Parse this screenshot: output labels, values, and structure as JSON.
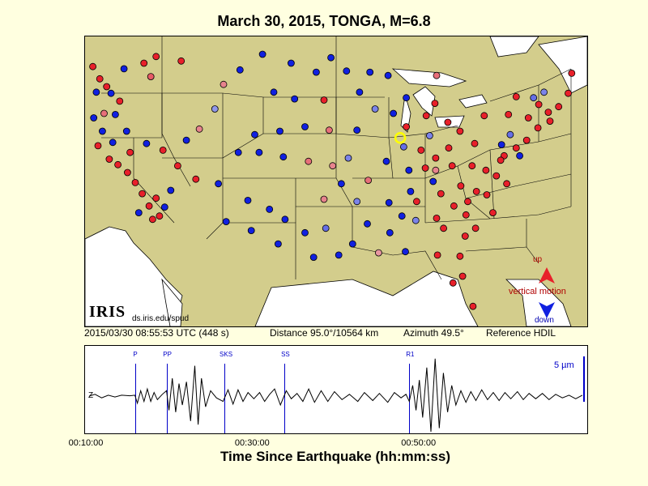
{
  "title": "March 30, 2015, TONGA, M=6.8",
  "info": {
    "datetime": "2015/03/30 08:55:53 UTC (448 s)",
    "distance": "Distance  95.0°/10564 km",
    "azimuth": "Azimuth  49.5°",
    "reference": "Reference HDIL"
  },
  "legend": {
    "up": "up",
    "vertical": "vertical motion",
    "down": "down"
  },
  "branding": {
    "logo": "IRIS",
    "url": "ds.iris.edu/spud"
  },
  "colors": {
    "background": "#ffffe0",
    "land": "#d3cd8c",
    "water": "#ffffff",
    "up": "#e8202a",
    "down": "#1020e0",
    "phase": "#0000c8"
  },
  "chart_data": {
    "type": "line",
    "xlabel": "Time Since Earthquake (hh:mm:ss)",
    "x_ticks": [
      "00:10:00",
      "00:30:00",
      "00:50:00"
    ],
    "x_tick_values_min": [
      10,
      30,
      50
    ],
    "xlim_min": [
      10,
      70
    ],
    "scale_label": "5 µm",
    "phases": [
      {
        "name": "P",
        "t": 15.8
      },
      {
        "name": "PP",
        "t": 19.6
      },
      {
        "name": "SKS",
        "t": 26.6
      },
      {
        "name": "SS",
        "t": 33.8
      },
      {
        "name": "R1",
        "t": 48.8
      }
    ],
    "trace_marker": "Z",
    "waveform": [
      [
        10.3,
        0
      ],
      [
        11.0,
        0.1
      ],
      [
        11.8,
        -0.1
      ],
      [
        12.6,
        0.05
      ],
      [
        13.4,
        -0.05
      ],
      [
        14.2,
        0.05
      ],
      [
        15.2,
        0.02
      ],
      [
        15.8,
        0.05
      ],
      [
        16.1,
        -0.4
      ],
      [
        16.5,
        0.3
      ],
      [
        16.9,
        -0.3
      ],
      [
        17.3,
        0.4
      ],
      [
        17.7,
        -0.3
      ],
      [
        18.1,
        0.2
      ],
      [
        18.5,
        -0.2
      ],
      [
        19.1,
        0.1
      ],
      [
        19.6,
        0.3
      ],
      [
        19.9,
        -0.8
      ],
      [
        20.3,
        1.0
      ],
      [
        20.7,
        -0.9
      ],
      [
        21.1,
        0.7
      ],
      [
        21.5,
        -0.5
      ],
      [
        22.0,
        0.8
      ],
      [
        22.5,
        -1.4
      ],
      [
        23.0,
        1.7
      ],
      [
        23.4,
        -1.6
      ],
      [
        23.8,
        1.0
      ],
      [
        24.3,
        -0.6
      ],
      [
        24.9,
        0.3
      ],
      [
        25.6,
        -0.1
      ],
      [
        26.4,
        -0.3
      ],
      [
        27.0,
        0.35
      ],
      [
        27.6,
        -0.45
      ],
      [
        28.2,
        0.35
      ],
      [
        28.8,
        -0.3
      ],
      [
        29.4,
        0.2
      ],
      [
        30.1,
        -0.15
      ],
      [
        30.8,
        0.2
      ],
      [
        31.4,
        -0.3
      ],
      [
        32.0,
        0.1
      ],
      [
        32.6,
        0.4
      ],
      [
        33.3,
        -0.5
      ],
      [
        34.0,
        0.3
      ],
      [
        34.6,
        -0.15
      ],
      [
        35.3,
        0.15
      ],
      [
        36.0,
        -0.3
      ],
      [
        36.7,
        0.4
      ],
      [
        37.4,
        -0.35
      ],
      [
        38.2,
        0.3
      ],
      [
        39.0,
        -0.3
      ],
      [
        39.8,
        0.25
      ],
      [
        40.7,
        -0.2
      ],
      [
        41.6,
        0.1
      ],
      [
        42.6,
        -0.3
      ],
      [
        43.4,
        0.2
      ],
      [
        44.4,
        -0.25
      ],
      [
        45.2,
        0.15
      ],
      [
        46.2,
        -0.35
      ],
      [
        47.0,
        0.2
      ],
      [
        47.8,
        -0.1
      ],
      [
        48.4,
        0.1
      ],
      [
        48.8,
        -0.3
      ],
      [
        49.2,
        0.6
      ],
      [
        49.6,
        -0.8
      ],
      [
        50.0,
        0.9
      ],
      [
        50.4,
        -1.2
      ],
      [
        50.9,
        1.6
      ],
      [
        51.4,
        -2.0
      ],
      [
        51.9,
        2.1
      ],
      [
        52.4,
        -1.8
      ],
      [
        52.9,
        1.3
      ],
      [
        53.4,
        -0.9
      ],
      [
        53.9,
        0.6
      ],
      [
        54.4,
        -0.5
      ],
      [
        55.0,
        0.3
      ],
      [
        55.6,
        -0.35
      ],
      [
        56.2,
        0.25
      ],
      [
        56.8,
        -0.25
      ],
      [
        57.5,
        0.35
      ],
      [
        58.2,
        -0.2
      ],
      [
        58.9,
        0.2
      ],
      [
        59.6,
        -0.25
      ],
      [
        60.3,
        0.2
      ],
      [
        61.0,
        -0.15
      ],
      [
        61.8,
        0.25
      ],
      [
        62.5,
        -0.2
      ],
      [
        63.2,
        0.15
      ],
      [
        64.0,
        -0.15
      ],
      [
        64.8,
        0.15
      ],
      [
        65.6,
        -0.2
      ],
      [
        66.4,
        0.1
      ],
      [
        67.2,
        -0.1
      ],
      [
        68.0,
        0.05
      ],
      [
        68.8,
        -0.15
      ],
      [
        69.6,
        0.05
      ]
    ],
    "station_values": [
      [
        -124.1,
        47.3,
        1
      ],
      [
        -123.3,
        46.2,
        1
      ],
      [
        -122.5,
        45.5,
        1
      ],
      [
        -121.0,
        44.2,
        1
      ],
      [
        -122.8,
        43.1,
        0.6
      ],
      [
        -118.2,
        47.6,
        1
      ],
      [
        -116.8,
        48.2,
        1
      ],
      [
        -113.9,
        47.8,
        1
      ],
      [
        -117.4,
        46.4,
        0.7
      ],
      [
        -120.5,
        47.1,
        -1
      ],
      [
        -123.7,
        45.0,
        -1
      ],
      [
        -122.0,
        44.9,
        -1
      ],
      [
        -124.0,
        42.7,
        -1
      ],
      [
        -121.5,
        43.0,
        -1
      ],
      [
        -123.0,
        41.5,
        -1
      ],
      [
        -121.8,
        40.5,
        -1
      ],
      [
        -120.2,
        41.5,
        -1
      ],
      [
        -123.5,
        40.2,
        1
      ],
      [
        -122.2,
        39.0,
        1
      ],
      [
        -121.2,
        38.5,
        1
      ],
      [
        -120.1,
        37.8,
        1
      ],
      [
        -119.2,
        36.9,
        1
      ],
      [
        -118.4,
        35.9,
        1
      ],
      [
        -117.6,
        34.8,
        1
      ],
      [
        -118.8,
        34.2,
        -1
      ],
      [
        -117.2,
        33.6,
        1
      ],
      [
        -116.4,
        33.9,
        1
      ],
      [
        -115.8,
        34.7,
        -1
      ],
      [
        -116.8,
        35.5,
        1
      ],
      [
        -115.1,
        36.2,
        -1
      ],
      [
        -119.8,
        39.6,
        1
      ],
      [
        -117.9,
        40.4,
        -1
      ],
      [
        -116.0,
        39.8,
        1
      ],
      [
        -114.3,
        38.4,
        1
      ],
      [
        -112.2,
        37.2,
        1
      ],
      [
        -113.3,
        40.7,
        -1
      ],
      [
        -111.8,
        41.7,
        0.5
      ],
      [
        -110.0,
        43.5,
        -0.4
      ],
      [
        -109.0,
        45.7,
        0.5
      ],
      [
        -107.1,
        47.0,
        -1
      ],
      [
        -104.5,
        48.4,
        -1
      ],
      [
        -101.2,
        47.6,
        -1
      ],
      [
        -98.3,
        46.8,
        -1
      ],
      [
        -96.6,
        48.1,
        -1
      ],
      [
        -103.2,
        45.0,
        -1
      ],
      [
        -100.8,
        44.4,
        -1
      ],
      [
        -97.4,
        44.3,
        1
      ],
      [
        -105.4,
        41.2,
        -1
      ],
      [
        -102.5,
        41.5,
        -1
      ],
      [
        -99.6,
        41.9,
        -1
      ],
      [
        -96.8,
        41.6,
        0.6
      ],
      [
        -107.3,
        39.6,
        -1
      ],
      [
        -104.9,
        39.6,
        -1
      ],
      [
        -102.1,
        39.2,
        -1
      ],
      [
        -99.2,
        38.8,
        0.6
      ],
      [
        -96.4,
        38.4,
        0.5
      ],
      [
        -109.6,
        36.8,
        -1
      ],
      [
        -106.2,
        35.3,
        -1
      ],
      [
        -103.7,
        34.5,
        -1
      ],
      [
        -108.7,
        33.4,
        -1
      ],
      [
        -105.8,
        32.6,
        -1
      ],
      [
        -101.9,
        33.6,
        -1
      ],
      [
        -99.6,
        32.4,
        -1
      ],
      [
        -102.7,
        31.4,
        -1
      ],
      [
        -98.6,
        30.2,
        -1
      ],
      [
        -97.2,
        32.8,
        -0.6
      ],
      [
        -95.7,
        30.4,
        -1
      ],
      [
        -97.4,
        35.4,
        0.5
      ],
      [
        -95.4,
        36.8,
        -1
      ],
      [
        -93.6,
        35.2,
        -0.5
      ],
      [
        -92.4,
        33.2,
        -1
      ],
      [
        -94.1,
        31.4,
        -1
      ],
      [
        -91.1,
        30.6,
        0.4
      ],
      [
        -89.8,
        32.4,
        -1
      ],
      [
        -88.4,
        33.9,
        -1
      ],
      [
        -86.7,
        35.2,
        1
      ],
      [
        -90.2,
        38.8,
        -1
      ],
      [
        -92.3,
        37.1,
        0.6
      ],
      [
        -94.6,
        39.1,
        -0.5
      ],
      [
        -93.6,
        41.6,
        -1
      ],
      [
        -91.5,
        43.5,
        -0.5
      ],
      [
        -89.4,
        43.1,
        -1
      ],
      [
        -87.9,
        41.9,
        1
      ],
      [
        -86.2,
        39.8,
        1
      ],
      [
        -84.5,
        39.1,
        1
      ],
      [
        -83.0,
        40.0,
        1
      ],
      [
        -81.7,
        41.5,
        1
      ],
      [
        -83.1,
        42.3,
        1
      ],
      [
        -84.6,
        44.0,
        1
      ],
      [
        -85.6,
        42.9,
        1
      ],
      [
        -87.9,
        44.5,
        -1
      ],
      [
        -90.0,
        46.5,
        -1
      ],
      [
        -93.3,
        45.0,
        -1
      ],
      [
        -94.8,
        46.9,
        -1
      ],
      [
        -92.1,
        46.8,
        -1
      ],
      [
        -84.4,
        46.5,
        0.6
      ],
      [
        -80.0,
        40.4,
        1
      ],
      [
        -78.9,
        42.9,
        1
      ],
      [
        -76.1,
        43.0,
        1
      ],
      [
        -75.2,
        44.6,
        1
      ],
      [
        -73.8,
        42.7,
        1
      ],
      [
        -72.6,
        43.9,
        1
      ],
      [
        -71.5,
        43.2,
        1
      ],
      [
        -70.3,
        43.7,
        1
      ],
      [
        -69.2,
        44.9,
        1
      ],
      [
        -68.8,
        46.7,
        1
      ],
      [
        -71.3,
        42.4,
        1
      ],
      [
        -72.7,
        41.8,
        1
      ],
      [
        -74.0,
        40.7,
        1
      ],
      [
        -75.2,
        40.0,
        1
      ],
      [
        -76.6,
        39.3,
        1
      ],
      [
        -77.0,
        38.9,
        1
      ],
      [
        -77.5,
        37.5,
        1
      ],
      [
        -78.7,
        38.0,
        1
      ],
      [
        -80.3,
        38.4,
        1
      ],
      [
        -79.8,
        36.1,
        1
      ],
      [
        -78.6,
        35.8,
        1
      ],
      [
        -77.9,
        34.2,
        1
      ],
      [
        -76.3,
        36.8,
        1
      ],
      [
        -80.8,
        35.2,
        1
      ],
      [
        -81.0,
        34.0,
        1
      ],
      [
        -82.4,
        34.8,
        1
      ],
      [
        -79.9,
        32.8,
        1
      ],
      [
        -81.1,
        32.1,
        1
      ],
      [
        -83.6,
        32.8,
        1
      ],
      [
        -84.4,
        33.7,
        1
      ],
      [
        -82.5,
        27.9,
        1
      ],
      [
        -81.4,
        28.5,
        1
      ],
      [
        -80.2,
        25.8,
        1
      ],
      [
        -81.7,
        30.3,
        1
      ],
      [
        -84.3,
        30.4,
        1
      ],
      [
        -85.7,
        38.2,
        1
      ],
      [
        -84.5,
        38.0,
        0.5
      ],
      [
        -82.6,
        38.4,
        1
      ],
      [
        -81.6,
        36.6,
        1
      ],
      [
        -83.9,
        35.9,
        1
      ],
      [
        -86.8,
        33.5,
        -0.5
      ],
      [
        -88.0,
        30.7,
        -1
      ],
      [
        -87.4,
        36.1,
        -1
      ],
      [
        -89.9,
        35.1,
        -1
      ],
      [
        -84.8,
        37.0,
        -1
      ],
      [
        -85.2,
        41.1,
        -0.5
      ],
      [
        -88.2,
        40.1,
        -0.6
      ],
      [
        -87.6,
        38.0,
        -1
      ],
      [
        -73.2,
        44.5,
        -0.6
      ],
      [
        -72.0,
        45.0,
        -0.5
      ],
      [
        -75.9,
        41.2,
        -0.6
      ],
      [
        -76.9,
        40.3,
        -1
      ],
      [
        -74.8,
        39.3,
        -1
      ]
    ],
    "reference_station": [
      -88.6,
      40.9
    ]
  }
}
